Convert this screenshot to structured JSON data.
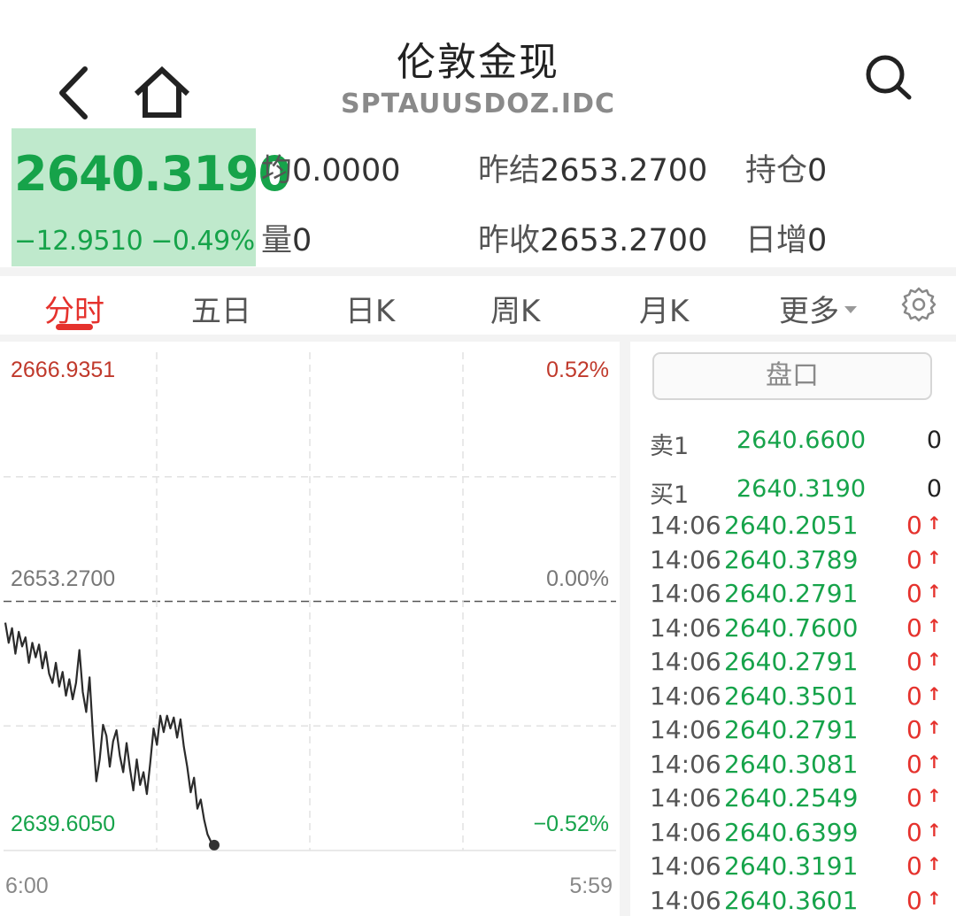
{
  "header": {
    "title": "伦敦金现",
    "symbol": "SPTAUUSDOZ.IDC",
    "back_icon": "chevron-left-icon",
    "home_icon": "home-icon",
    "search_icon": "search-icon"
  },
  "quote": {
    "price": "2640.3190",
    "change": "−12.9510",
    "change_pct": "−0.49%",
    "avg_label": "均",
    "avg_value": "0.0000",
    "prev_settle_label": "昨结",
    "prev_settle_value": "2653.2700",
    "open_interest_label": "持仓",
    "open_interest_value": "0",
    "volume_label": "量",
    "volume_value": "0",
    "prev_close_label": "昨收",
    "prev_close_value": "2653.2700",
    "daily_increase_label": "日增",
    "daily_increase_value": "0"
  },
  "tabs": [
    {
      "label": "分时",
      "active": true
    },
    {
      "label": "五日",
      "active": false
    },
    {
      "label": "日K",
      "active": false
    },
    {
      "label": "周K",
      "active": false
    },
    {
      "label": "月K",
      "active": false
    },
    {
      "label": "更多",
      "active": false
    }
  ],
  "settings_icon": "gear-icon",
  "colors": {
    "up": "#e5322d",
    "down": "#16a34a",
    "price_bg": "#bfe9cc",
    "line": "#2b2b2b"
  },
  "chart_data": {
    "type": "line",
    "title": "",
    "xlabel": "",
    "ylabel": "",
    "y_labels_left": [
      "2666.9351",
      "2653.2700",
      "2639.6050"
    ],
    "y_labels_right": [
      "0.52%",
      "0.00%",
      "−0.52%"
    ],
    "x_labels": [
      "6:00",
      "5:59"
    ],
    "ylim": [
      2639.605,
      2666.9351
    ],
    "reference": 2653.27,
    "grid": true,
    "series": [
      {
        "values": [
          2652.1,
          2651.0,
          2651.8,
          2650.4,
          2651.6,
          2650.8,
          2651.3,
          2649.9,
          2651.0,
          2650.2,
          2650.9,
          2649.6,
          2650.5,
          2649.3,
          2648.8,
          2649.9,
          2648.6,
          2649.4,
          2648.1,
          2649.0,
          2647.9,
          2648.8,
          2650.6,
          2648.3,
          2647.2,
          2649.1,
          2646.0,
          2643.4,
          2644.6,
          2646.5,
          2645.9,
          2644.2,
          2645.6,
          2646.2,
          2644.8,
          2643.9,
          2645.5,
          2644.1,
          2642.9,
          2644.6,
          2643.2,
          2643.9,
          2642.7,
          2644.4,
          2646.3,
          2645.4,
          2647.0,
          2646.1,
          2647.0,
          2646.3,
          2646.9,
          2645.8,
          2646.8,
          2645.3,
          2644.2,
          2642.8,
          2643.6,
          2641.9,
          2642.4,
          2641.3,
          2640.5,
          2640.1,
          2639.9
        ]
      }
    ]
  },
  "orderbook": {
    "pankou_label": "盘口",
    "ask": {
      "label": "卖1",
      "price": "2640.6600",
      "volume": "0"
    },
    "bid": {
      "label": "买1",
      "price": "2640.3190",
      "volume": "0"
    },
    "up_arrow": "↑",
    "ticks": [
      {
        "time": "14:06",
        "price": "2640.2051",
        "volume": "0"
      },
      {
        "time": "14:06",
        "price": "2640.3789",
        "volume": "0"
      },
      {
        "time": "14:06",
        "price": "2640.2791",
        "volume": "0"
      },
      {
        "time": "14:06",
        "price": "2640.7600",
        "volume": "0"
      },
      {
        "time": "14:06",
        "price": "2640.2791",
        "volume": "0"
      },
      {
        "time": "14:06",
        "price": "2640.3501",
        "volume": "0"
      },
      {
        "time": "14:06",
        "price": "2640.2791",
        "volume": "0"
      },
      {
        "time": "14:06",
        "price": "2640.3081",
        "volume": "0"
      },
      {
        "time": "14:06",
        "price": "2640.2549",
        "volume": "0"
      },
      {
        "time": "14:06",
        "price": "2640.6399",
        "volume": "0"
      },
      {
        "time": "14:06",
        "price": "2640.3191",
        "volume": "0"
      },
      {
        "time": "14:06",
        "price": "2640.3601",
        "volume": "0"
      }
    ]
  }
}
